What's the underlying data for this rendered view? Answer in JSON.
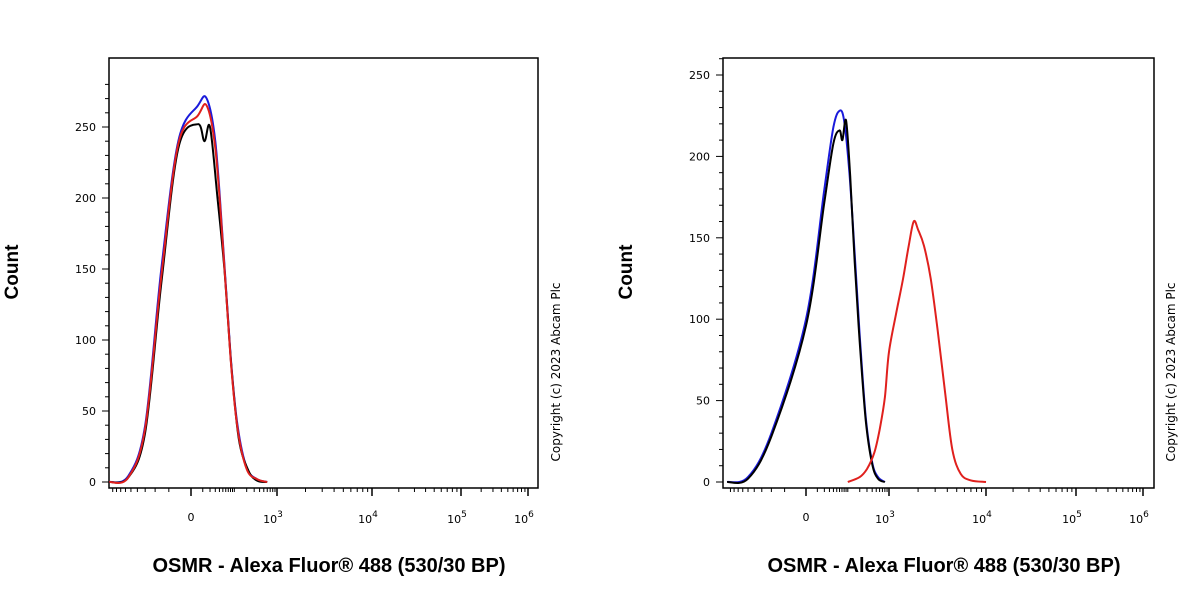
{
  "chart_data": [
    {
      "type": "line",
      "panel": "left",
      "title": "",
      "xlabel": "OSMR - Alexa Fluor® 488 (530/30 BP)",
      "ylabel": "Count",
      "xscale": "biexponential",
      "x_ticks": [
        {
          "label": "0",
          "value": 0
        },
        {
          "label": "10",
          "sup": "3",
          "value": 1000
        },
        {
          "label": "10",
          "sup": "4",
          "value": 10000
        },
        {
          "label": "10",
          "sup": "5",
          "value": 100000
        },
        {
          "label": "10",
          "sup": "6",
          "value": 1000000
        }
      ],
      "y_ticks": [
        0,
        50,
        100,
        150,
        200,
        250
      ],
      "ylim": [
        0,
        285
      ],
      "copyright": "Copyright (c) 2023 Abcam Plc",
      "series": [
        {
          "name": "blue",
          "color": "#1a1adb",
          "points": [
            [
              -100,
              0
            ],
            [
              -55,
              4
            ],
            [
              -30,
              40
            ],
            [
              -15,
              150
            ],
            [
              -5,
              240
            ],
            [
              5,
              265
            ],
            [
              15,
              270
            ],
            [
              30,
              240
            ],
            [
              50,
              170
            ],
            [
              80,
              90
            ],
            [
              120,
              40
            ],
            [
              200,
              10
            ],
            [
              350,
              2
            ],
            [
              600,
              0
            ]
          ]
        },
        {
          "name": "black",
          "color": "#000000",
          "points": [
            [
              -100,
              0
            ],
            [
              -55,
              3
            ],
            [
              -30,
              35
            ],
            [
              -15,
              140
            ],
            [
              -5,
              235
            ],
            [
              5,
              252
            ],
            [
              12,
              240
            ],
            [
              20,
              250
            ],
            [
              35,
              200
            ],
            [
              55,
              150
            ],
            [
              85,
              80
            ],
            [
              130,
              30
            ],
            [
              220,
              8
            ],
            [
              350,
              1
            ],
            [
              600,
              0
            ]
          ]
        },
        {
          "name": "red",
          "color": "#e0201d",
          "points": [
            [
              -100,
              0
            ],
            [
              -55,
              3
            ],
            [
              -30,
              38
            ],
            [
              -15,
              145
            ],
            [
              -5,
              238
            ],
            [
              5,
              258
            ],
            [
              15,
              265
            ],
            [
              30,
              235
            ],
            [
              50,
              168
            ],
            [
              80,
              88
            ],
            [
              120,
              38
            ],
            [
              200,
              9
            ],
            [
              350,
              2
            ],
            [
              600,
              0
            ]
          ]
        }
      ]
    },
    {
      "type": "line",
      "panel": "right",
      "title": "",
      "xlabel": "OSMR - Alexa Fluor® 488 (530/30 BP)",
      "ylabel": "Count",
      "xscale": "biexponential",
      "x_ticks": [
        {
          "label": "0",
          "value": 0
        },
        {
          "label": "10",
          "sup": "3",
          "value": 1000
        },
        {
          "label": "10",
          "sup": "4",
          "value": 10000
        },
        {
          "label": "10",
          "sup": "5",
          "value": 100000
        },
        {
          "label": "10",
          "sup": "6",
          "value": 1000000
        }
      ],
      "y_ticks": [
        0,
        50,
        100,
        150,
        200,
        250
      ],
      "ylim": [
        0,
        260
      ],
      "copyright": "Copyright (c) 2023 Abcam Plc",
      "series": [
        {
          "name": "blue",
          "color": "#1a1adb",
          "points": [
            [
              -100,
              0
            ],
            [
              -50,
              3
            ],
            [
              -20,
              30
            ],
            [
              0,
              100
            ],
            [
              20,
              180
            ],
            [
              40,
              218
            ],
            [
              60,
              228
            ],
            [
              80,
              222
            ],
            [
              110,
              190
            ],
            [
              150,
              140
            ],
            [
              200,
              90
            ],
            [
              280,
              40
            ],
            [
              400,
              12
            ],
            [
              550,
              3
            ],
            [
              800,
              0
            ]
          ]
        },
        {
          "name": "black",
          "color": "#000000",
          "points": [
            [
              -100,
              0
            ],
            [
              -50,
              2
            ],
            [
              -20,
              28
            ],
            [
              0,
              96
            ],
            [
              20,
              172
            ],
            [
              40,
              208
            ],
            [
              60,
              216
            ],
            [
              72,
              210
            ],
            [
              90,
              222
            ],
            [
              115,
              188
            ],
            [
              150,
              135
            ],
            [
              200,
              86
            ],
            [
              280,
              38
            ],
            [
              400,
              11
            ],
            [
              550,
              2
            ],
            [
              800,
              0
            ]
          ]
        },
        {
          "name": "red",
          "color": "#e0201d",
          "points": [
            [
              100,
              0
            ],
            [
              200,
              3
            ],
            [
              300,
              8
            ],
            [
              450,
              18
            ],
            [
              600,
              32
            ],
            [
              800,
              52
            ],
            [
              1000,
              80
            ],
            [
              1200,
              105
            ],
            [
              1400,
              125
            ],
            [
              1600,
              145
            ],
            [
              1800,
              160
            ],
            [
              2000,
              155
            ],
            [
              2300,
              145
            ],
            [
              2700,
              125
            ],
            [
              3200,
              92
            ],
            [
              3800,
              55
            ],
            [
              4500,
              20
            ],
            [
              5500,
              5
            ],
            [
              7000,
              1
            ],
            [
              10000,
              0
            ]
          ]
        }
      ]
    }
  ]
}
